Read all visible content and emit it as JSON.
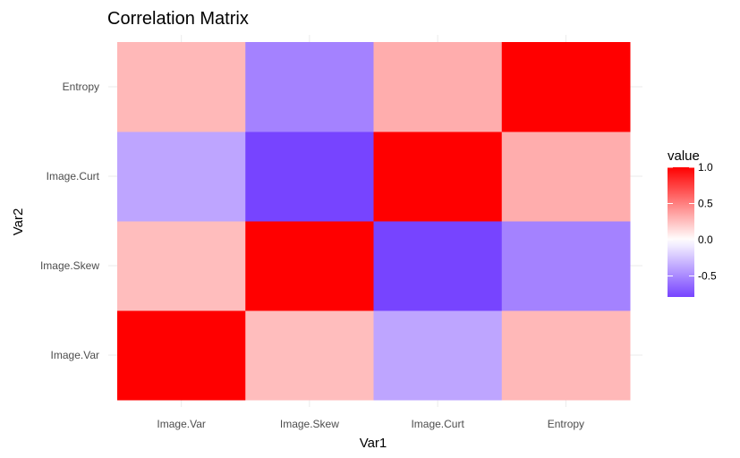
{
  "chart_data": {
    "type": "heatmap",
    "title": "Correlation Matrix",
    "xlabel": "Var1",
    "ylabel": "Var2",
    "x_categories": [
      "Image.Var",
      "Image.Skew",
      "Image.Curt",
      "Entropy"
    ],
    "y_categories": [
      "Image.Var",
      "Image.Skew",
      "Image.Curt",
      "Entropy"
    ],
    "values": [
      [
        1.0,
        0.26,
        -0.38,
        0.28
      ],
      [
        0.26,
        1.0,
        -0.79,
        -0.53
      ],
      [
        -0.38,
        -0.79,
        1.0,
        0.32
      ],
      [
        0.28,
        -0.53,
        0.32,
        1.0
      ]
    ],
    "legend": {
      "title": "value",
      "placement": "right",
      "ticks": [
        1.0,
        0.5,
        0.0,
        -0.5
      ],
      "tick_labels": [
        "1.0",
        "0.5",
        "0.0",
        "-0.5"
      ],
      "range": [
        -0.79,
        1.0
      ]
    },
    "colors": {
      "low": "#7744ff",
      "mid": "#ffffff",
      "high": "#ff0000"
    },
    "grid": true
  }
}
